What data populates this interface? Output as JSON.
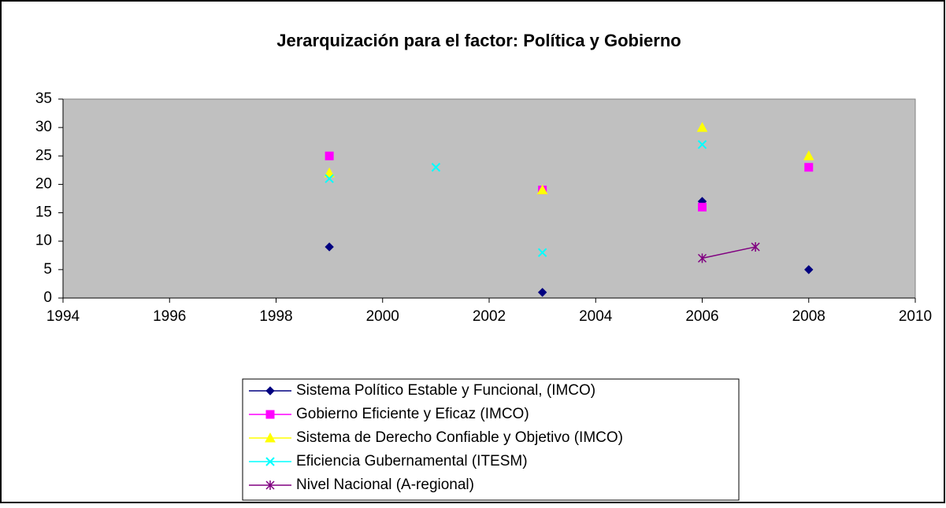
{
  "chart_data": {
    "type": "line",
    "title": "Jerarquización para el factor: Política y Gobierno",
    "x": [
      1999,
      2000,
      2001,
      2002,
      2003,
      2004,
      2005,
      2006,
      2007,
      2008
    ],
    "series": [
      {
        "name": "Sistema Político Estable y Funcional, (IMCO)",
        "color": "#000080",
        "marker": "diamond",
        "values": [
          9,
          null,
          null,
          null,
          1,
          null,
          null,
          17,
          null,
          5
        ]
      },
      {
        "name": "Gobierno Eficiente y Eficaz (IMCO)",
        "color": "#FF00FF",
        "marker": "square",
        "values": [
          25,
          null,
          null,
          null,
          19,
          null,
          null,
          16,
          null,
          23
        ]
      },
      {
        "name": "Sistema de Derecho Confiable y Objetivo (IMCO)",
        "color": "#FFFF00",
        "marker": "triangle",
        "values": [
          22,
          null,
          null,
          null,
          19,
          null,
          null,
          30,
          null,
          25
        ]
      },
      {
        "name": "Eficiencia Gubernamental (ITESM)",
        "color": "#00FFFF",
        "marker": "x",
        "values": [
          21,
          null,
          23,
          null,
          8,
          null,
          null,
          27,
          null,
          null
        ]
      },
      {
        "name": "Nivel Nacional (A-regional)",
        "color": "#800080",
        "marker": "star",
        "values": [
          null,
          null,
          null,
          null,
          null,
          null,
          null,
          7,
          9,
          null
        ]
      }
    ],
    "xlim": [
      1994,
      2010
    ],
    "xticks": [
      1994,
      1996,
      1998,
      2000,
      2002,
      2004,
      2006,
      2008,
      2010
    ],
    "ylim": [
      0,
      35
    ],
    "yticks": [
      0,
      5,
      10,
      15,
      20,
      25,
      30,
      35
    ],
    "grid": false,
    "plot_background": "#C0C0C0"
  }
}
